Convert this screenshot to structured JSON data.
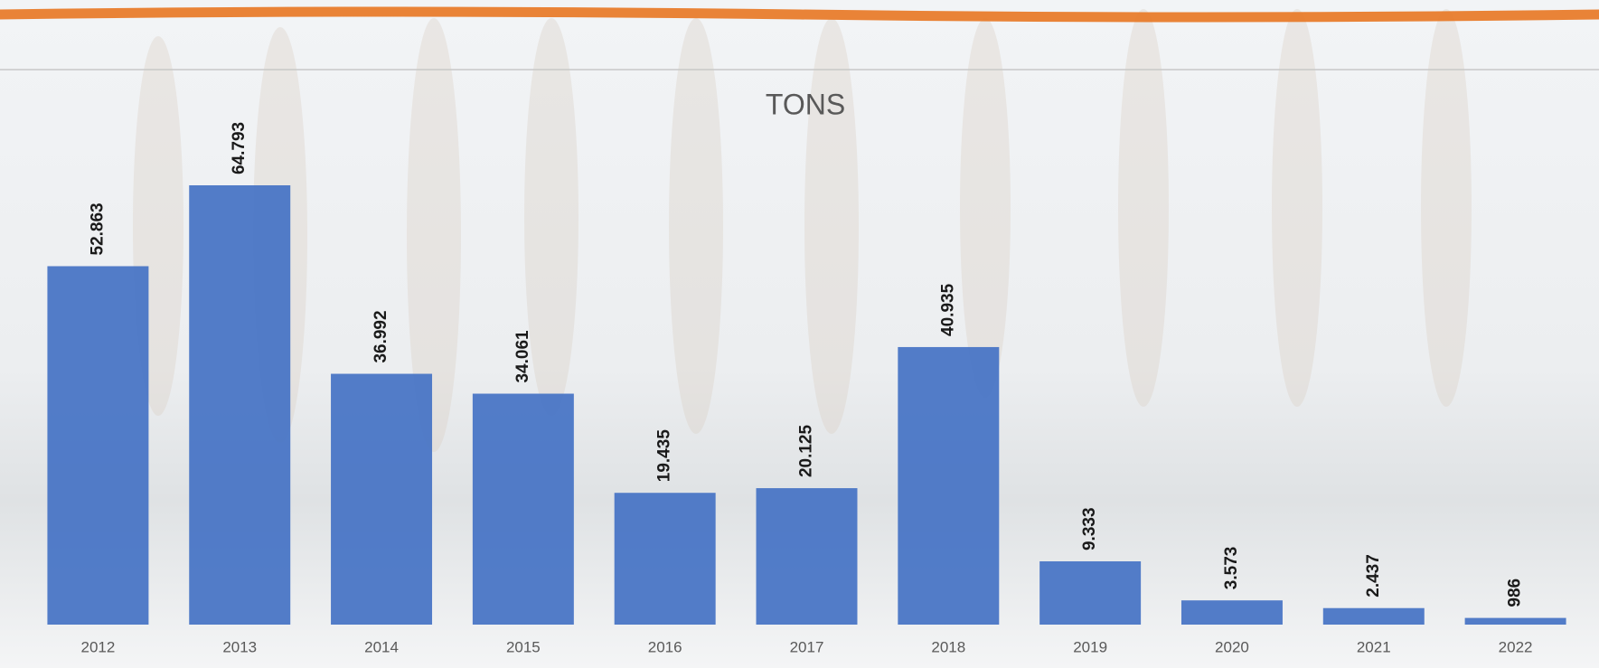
{
  "chart_data": {
    "type": "bar",
    "title": "TONS",
    "categories": [
      "2012",
      "2013",
      "2014",
      "2015",
      "2016",
      "2017",
      "2018",
      "2019",
      "2020",
      "2021",
      "2022"
    ],
    "values": [
      52863,
      64793,
      36992,
      34061,
      19435,
      20125,
      40935,
      9333,
      3573,
      2437,
      986
    ],
    "value_labels": [
      "52.863",
      "64.793",
      "36.992",
      "34.061",
      "19.435",
      "20.125",
      "40.935",
      "9.333",
      "3.573",
      "2.437",
      "986"
    ],
    "color": "#4472c4"
  }
}
